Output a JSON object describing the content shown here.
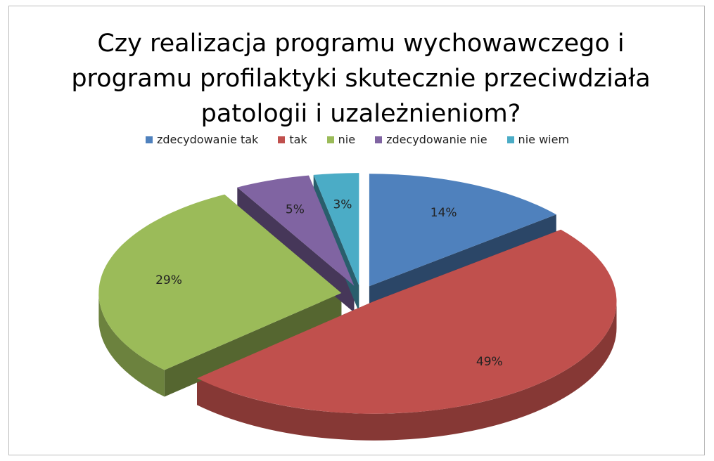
{
  "chart_data": {
    "type": "pie",
    "title": "Czy realizacja programu wychowawczego i programu profilaktyki skutecznie przeciwdziała patologii i uzależnieniom?",
    "categories": [
      "zdecydowanie tak",
      "tak",
      "nie",
      "zdecydowanie nie",
      "nie wiem"
    ],
    "values": [
      14,
      49,
      29,
      5,
      3
    ],
    "value_labels": [
      "14%",
      "49%",
      "29%",
      "5%",
      "3%"
    ],
    "colors": [
      "#4f81bd",
      "#c0504d",
      "#9bbb59",
      "#8064a2",
      "#4bacc6"
    ],
    "legend": "top"
  }
}
